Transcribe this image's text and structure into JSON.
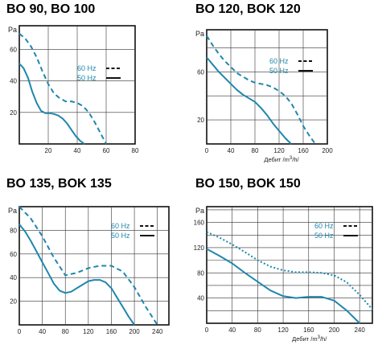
{
  "chart_data": [
    {
      "type": "line",
      "title": "BO 90, BO 100",
      "ylabel": "Pa",
      "xlabel": "",
      "xlim": [
        0,
        80
      ],
      "ylim": [
        0,
        75
      ],
      "xticks": [
        "20",
        "40",
        "60",
        "80"
      ],
      "yticks": [
        "20",
        "40",
        "60"
      ],
      "grid": true,
      "legend_position": "right-middle",
      "series": [
        {
          "name": "60 Hz",
          "style": "dashed",
          "color": "#1f87ad",
          "x": [
            0,
            4,
            8,
            12,
            16,
            20,
            24,
            28,
            32,
            36,
            40,
            44,
            48,
            52,
            56,
            60
          ],
          "y": [
            70,
            67,
            62,
            55,
            46,
            38,
            32,
            29,
            27,
            27,
            26,
            24,
            20,
            14,
            7,
            0
          ]
        },
        {
          "name": "50 Hz",
          "style": "solid",
          "color": "#1f87ad",
          "x": [
            0,
            3,
            6,
            9,
            12,
            15,
            18,
            21,
            24,
            27,
            30,
            33,
            36,
            39,
            42,
            45
          ],
          "y": [
            51,
            48,
            42,
            33,
            26,
            21,
            19.5,
            19.5,
            19,
            18,
            16,
            13,
            9,
            5,
            2,
            0
          ]
        }
      ]
    },
    {
      "type": "line",
      "title": "BO 120, BOK 120",
      "ylabel": "Pa",
      "xlabel": "Дебит /m3/h/",
      "xlim": [
        0,
        200
      ],
      "ylim": [
        0,
        95
      ],
      "xticks": [
        "0",
        "40",
        "80",
        "120",
        "160",
        "200"
      ],
      "yticks": [
        "20",
        "60"
      ],
      "grid": true,
      "legend_position": "top-right",
      "series": [
        {
          "name": "60 Hz",
          "style": "dashed",
          "color": "#1f87ad",
          "x": [
            0,
            10,
            20,
            30,
            40,
            50,
            60,
            70,
            80,
            90,
            100,
            110,
            120,
            130,
            140,
            150,
            160,
            170,
            180
          ],
          "y": [
            90,
            82,
            75,
            69,
            64,
            59,
            56,
            53,
            51,
            50,
            49,
            47,
            44,
            40,
            34,
            25,
            15,
            7,
            0
          ]
        },
        {
          "name": "50 Hz",
          "style": "solid",
          "color": "#1f87ad",
          "x": [
            0,
            10,
            20,
            30,
            40,
            50,
            60,
            70,
            80,
            90,
            100,
            110,
            120,
            130,
            140
          ],
          "y": [
            72,
            66,
            60,
            55,
            50,
            45,
            41,
            38,
            35,
            30,
            24,
            17,
            11,
            5,
            0
          ]
        }
      ]
    },
    {
      "type": "line",
      "title": "BO 135, BOK 135",
      "ylabel": "Pa",
      "xlabel": "",
      "xlim": [
        0,
        260
      ],
      "ylim": [
        0,
        100
      ],
      "xticks": [
        "0",
        "40",
        "80",
        "120",
        "160",
        "200",
        "240"
      ],
      "yticks": [
        "20",
        "40",
        "60",
        "80"
      ],
      "grid": true,
      "legend_position": "top-right",
      "series": [
        {
          "name": "60 Hz",
          "style": "dashed",
          "color": "#1f87ad",
          "x": [
            0,
            20,
            40,
            60,
            80,
            100,
            120,
            140,
            160,
            180,
            200,
            220,
            240
          ],
          "y": [
            100,
            90,
            75,
            57,
            42,
            44,
            48,
            50,
            50,
            45,
            32,
            15,
            0
          ]
        },
        {
          "name": "50 Hz",
          "style": "solid",
          "color": "#1f87ad",
          "x": [
            0,
            10,
            20,
            30,
            40,
            50,
            60,
            70,
            80,
            90,
            100,
            110,
            120,
            130,
            140,
            150,
            160,
            170,
            180,
            190,
            200
          ],
          "y": [
            85,
            79,
            71,
            62,
            53,
            44,
            35,
            29,
            27,
            28,
            31,
            34,
            37,
            38,
            38,
            36,
            31,
            23,
            15,
            7,
            0
          ]
        }
      ]
    },
    {
      "type": "line",
      "title": "BO 150, BOK 150",
      "ylabel": "Pa",
      "xlabel": "Дебит /m3/h/",
      "xlim": [
        0,
        260
      ],
      "ylim": [
        0,
        185
      ],
      "xticks": [
        "0",
        "40",
        "80",
        "120",
        "160",
        "200",
        "240"
      ],
      "yticks": [
        "40",
        "80",
        "120",
        "160"
      ],
      "grid": true,
      "legend_position": "top-right",
      "series": [
        {
          "name": "60 Hz",
          "style": "dotted",
          "color": "#1f87ad",
          "x": [
            0,
            20,
            40,
            60,
            80,
            100,
            120,
            140,
            160,
            180,
            200,
            220,
            240,
            260
          ],
          "y": [
            145,
            136,
            125,
            113,
            100,
            90,
            84,
            81,
            81,
            80,
            76,
            65,
            45,
            22
          ]
        },
        {
          "name": "50 Hz",
          "style": "solid",
          "color": "#1f87ad",
          "x": [
            0,
            20,
            40,
            60,
            80,
            100,
            120,
            140,
            160,
            180,
            200,
            220,
            240
          ],
          "y": [
            118,
            107,
            95,
            80,
            66,
            52,
            43,
            40,
            42,
            42,
            36,
            20,
            0
          ]
        }
      ]
    }
  ]
}
